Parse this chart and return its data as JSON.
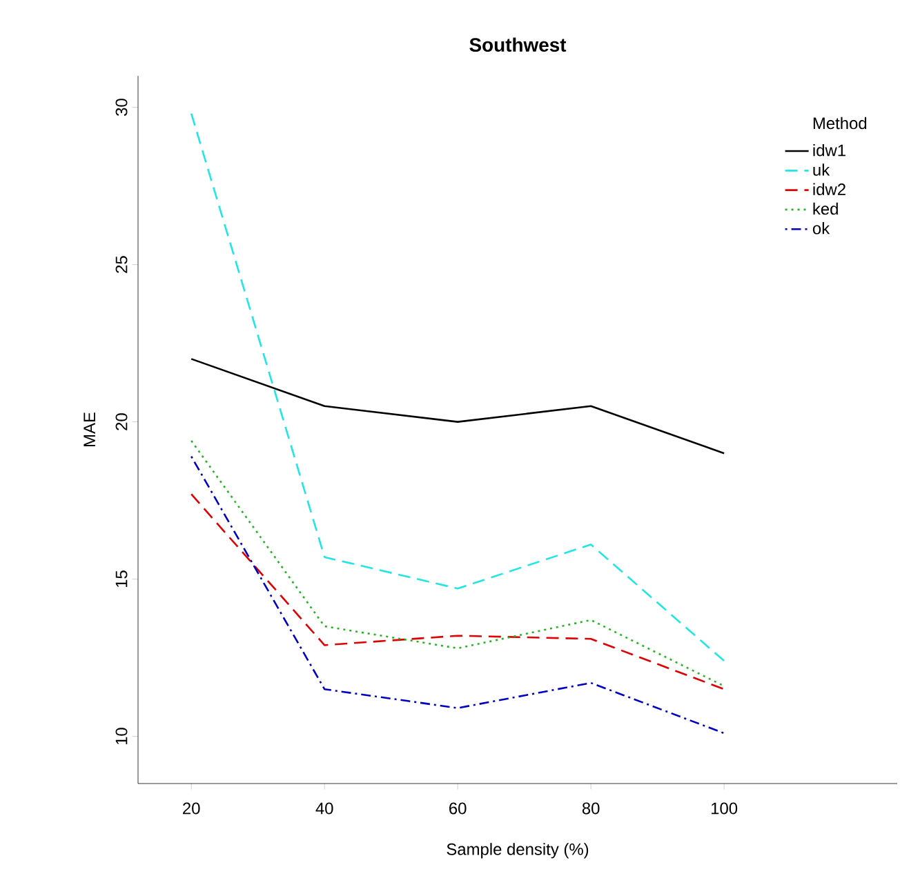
{
  "chart_data": {
    "type": "line",
    "title": "Southwest",
    "xlabel": "Sample density (%)",
    "ylabel": "MAE",
    "legend_title": "Method",
    "legend": "top right",
    "grid": false,
    "x": [
      20,
      40,
      60,
      80,
      100
    ],
    "xlim": [
      12,
      126
    ],
    "ylim": [
      8.5,
      31
    ],
    "xticks": [
      20,
      40,
      60,
      80,
      100
    ],
    "yticks": [
      10,
      15,
      20,
      25,
      30
    ],
    "series": [
      {
        "name": "idw1",
        "color": "#000000",
        "line_style": "solid",
        "values": [
          22,
          20.5,
          20,
          20.5,
          19
        ]
      },
      {
        "name": "uk",
        "color": "#22e5e5",
        "line_style": "dashed",
        "values": [
          29.8,
          15.7,
          14.7,
          16.1,
          12.4
        ]
      },
      {
        "name": "idw2",
        "color": "#df0000",
        "line_style": "dashed",
        "values": [
          17.7,
          12.9,
          13.2,
          13.1,
          11.5
        ]
      },
      {
        "name": "ked",
        "color": "#22b522",
        "line_style": "dotted",
        "values": [
          19.4,
          13.5,
          12.8,
          13.7,
          11.6
        ]
      },
      {
        "name": "ok",
        "color": "#0000c0",
        "line_style": "dashdot",
        "values": [
          18.9,
          11.5,
          10.9,
          11.7,
          10.1
        ]
      }
    ]
  }
}
